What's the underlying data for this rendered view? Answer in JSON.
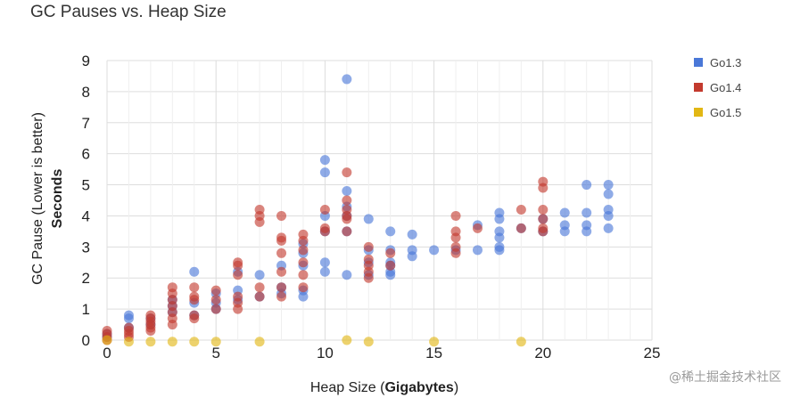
{
  "chart_data": {
    "type": "scatter",
    "title": "GC Pauses vs. Heap Size",
    "xlabel_prefix": "Heap Size (",
    "xlabel_bold": "Gigabytes",
    "xlabel_suffix": ")",
    "ylabel": "GC Pause (Lower is better)",
    "ylabel_bold": "Seconds",
    "xlim": [
      0,
      25
    ],
    "ylim": [
      0,
      9
    ],
    "x_ticks": [
      "0",
      "5",
      "10",
      "15",
      "20",
      "25"
    ],
    "y_ticks": [
      "0",
      "1",
      "2",
      "3",
      "4",
      "5",
      "6",
      "7",
      "8",
      "9"
    ],
    "grid": true,
    "legend_position": "right",
    "series": [
      {
        "name": "Go1.3",
        "color": "#4a78d8",
        "points": [
          [
            0,
            0.1
          ],
          [
            0,
            0.2
          ],
          [
            1,
            0.4
          ],
          [
            1,
            0.8
          ],
          [
            1,
            0.7
          ],
          [
            2,
            0.5
          ],
          [
            2,
            0.7
          ],
          [
            3,
            0.9
          ],
          [
            3,
            1.1
          ],
          [
            3,
            1.3
          ],
          [
            4,
            0.8
          ],
          [
            4,
            1.2
          ],
          [
            4,
            2.2
          ],
          [
            5,
            1.2
          ],
          [
            5,
            1.0
          ],
          [
            5,
            1.5
          ],
          [
            6,
            1.3
          ],
          [
            6,
            1.6
          ],
          [
            6,
            2.2
          ],
          [
            7,
            1.4
          ],
          [
            7,
            2.1
          ],
          [
            8,
            1.5
          ],
          [
            8,
            1.7
          ],
          [
            8,
            2.4
          ],
          [
            9,
            1.4
          ],
          [
            9,
            1.6
          ],
          [
            9,
            2.4
          ],
          [
            9,
            2.8
          ],
          [
            9,
            3.1
          ],
          [
            10,
            2.2
          ],
          [
            10,
            2.5
          ],
          [
            10,
            3.5
          ],
          [
            10,
            4.0
          ],
          [
            10,
            5.4
          ],
          [
            10,
            5.8
          ],
          [
            11,
            2.1
          ],
          [
            11,
            3.5
          ],
          [
            11,
            4.0
          ],
          [
            11,
            4.3
          ],
          [
            11,
            4.8
          ],
          [
            11,
            8.4
          ],
          [
            12,
            2.1
          ],
          [
            12,
            2.5
          ],
          [
            12,
            2.9
          ],
          [
            12,
            3.9
          ],
          [
            13,
            2.1
          ],
          [
            13,
            2.2
          ],
          [
            13,
            2.4
          ],
          [
            13,
            2.5
          ],
          [
            13,
            2.9
          ],
          [
            13,
            3.5
          ],
          [
            14,
            2.7
          ],
          [
            14,
            2.9
          ],
          [
            14,
            3.4
          ],
          [
            15,
            2.9
          ],
          [
            16,
            2.9
          ],
          [
            17,
            2.9
          ],
          [
            17,
            3.7
          ],
          [
            18,
            2.9
          ],
          [
            18,
            3.0
          ],
          [
            18,
            3.3
          ],
          [
            18,
            3.5
          ],
          [
            18,
            3.9
          ],
          [
            18,
            4.1
          ],
          [
            19,
            3.6
          ],
          [
            20,
            3.5
          ],
          [
            20,
            3.9
          ],
          [
            21,
            3.5
          ],
          [
            21,
            3.7
          ],
          [
            21,
            4.1
          ],
          [
            22,
            3.5
          ],
          [
            22,
            3.7
          ],
          [
            22,
            4.1
          ],
          [
            22,
            5.0
          ],
          [
            23,
            3.6
          ],
          [
            23,
            4.0
          ],
          [
            23,
            4.2
          ],
          [
            23,
            4.7
          ],
          [
            23,
            5.0
          ]
        ]
      },
      {
        "name": "Go1.4",
        "color": "#c33a2e",
        "points": [
          [
            0,
            0.0
          ],
          [
            0,
            0.1
          ],
          [
            0,
            0.2
          ],
          [
            0,
            0.3
          ],
          [
            1,
            0.1
          ],
          [
            1,
            0.2
          ],
          [
            1,
            0.3
          ],
          [
            1,
            0.4
          ],
          [
            2,
            0.3
          ],
          [
            2,
            0.4
          ],
          [
            2,
            0.5
          ],
          [
            2,
            0.6
          ],
          [
            2,
            0.7
          ],
          [
            2,
            0.8
          ],
          [
            3,
            0.5
          ],
          [
            3,
            0.7
          ],
          [
            3,
            0.9
          ],
          [
            3,
            1.1
          ],
          [
            3,
            1.3
          ],
          [
            3,
            1.5
          ],
          [
            3,
            1.7
          ],
          [
            4,
            0.7
          ],
          [
            4,
            0.8
          ],
          [
            4,
            1.3
          ],
          [
            4,
            1.4
          ],
          [
            4,
            1.7
          ],
          [
            5,
            1.0
          ],
          [
            5,
            1.3
          ],
          [
            5,
            1.6
          ],
          [
            6,
            1.0
          ],
          [
            6,
            1.2
          ],
          [
            6,
            1.4
          ],
          [
            6,
            2.1
          ],
          [
            6,
            2.4
          ],
          [
            6,
            2.5
          ],
          [
            7,
            1.4
          ],
          [
            7,
            1.7
          ],
          [
            7,
            3.8
          ],
          [
            7,
            4.0
          ],
          [
            7,
            4.2
          ],
          [
            8,
            1.4
          ],
          [
            8,
            1.7
          ],
          [
            8,
            2.2
          ],
          [
            8,
            2.8
          ],
          [
            8,
            3.2
          ],
          [
            8,
            3.3
          ],
          [
            8,
            4.0
          ],
          [
            9,
            1.7
          ],
          [
            9,
            2.1
          ],
          [
            9,
            2.5
          ],
          [
            9,
            2.9
          ],
          [
            9,
            3.2
          ],
          [
            9,
            3.4
          ],
          [
            10,
            3.5
          ],
          [
            10,
            3.6
          ],
          [
            10,
            4.2
          ],
          [
            11,
            3.5
          ],
          [
            11,
            3.9
          ],
          [
            11,
            4.0
          ],
          [
            11,
            4.2
          ],
          [
            11,
            4.5
          ],
          [
            11,
            5.4
          ],
          [
            12,
            2.0
          ],
          [
            12,
            2.2
          ],
          [
            12,
            2.4
          ],
          [
            12,
            2.6
          ],
          [
            12,
            3.0
          ],
          [
            13,
            2.4
          ],
          [
            13,
            2.8
          ],
          [
            16,
            2.8
          ],
          [
            16,
            3.0
          ],
          [
            16,
            3.3
          ],
          [
            16,
            3.5
          ],
          [
            16,
            4.0
          ],
          [
            17,
            3.6
          ],
          [
            19,
            4.2
          ],
          [
            19,
            3.6
          ],
          [
            20,
            3.5
          ],
          [
            20,
            3.6
          ],
          [
            20,
            3.9
          ],
          [
            20,
            4.2
          ],
          [
            20,
            4.9
          ],
          [
            20,
            5.1
          ]
        ]
      },
      {
        "name": "Go1.5",
        "color": "#e2b714",
        "points": [
          [
            0,
            0.0
          ],
          [
            1,
            -0.05
          ],
          [
            2,
            -0.05
          ],
          [
            3,
            -0.05
          ],
          [
            4,
            -0.05
          ],
          [
            5,
            -0.05
          ],
          [
            7,
            -0.05
          ],
          [
            11,
            0.0
          ],
          [
            12,
            -0.05
          ],
          [
            15,
            -0.05
          ],
          [
            19,
            -0.05
          ]
        ]
      }
    ]
  },
  "watermark": "@稀土掘金技术社区"
}
